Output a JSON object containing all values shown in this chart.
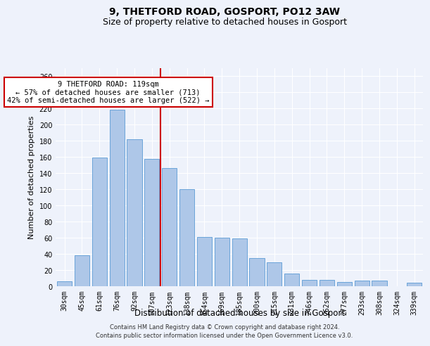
{
  "title": "9, THETFORD ROAD, GOSPORT, PO12 3AW",
  "subtitle": "Size of property relative to detached houses in Gosport",
  "xlabel": "Distribution of detached houses by size in Gosport",
  "ylabel": "Number of detached properties",
  "categories": [
    "30sqm",
    "45sqm",
    "61sqm",
    "76sqm",
    "92sqm",
    "107sqm",
    "123sqm",
    "138sqm",
    "154sqm",
    "169sqm",
    "185sqm",
    "200sqm",
    "215sqm",
    "231sqm",
    "246sqm",
    "262sqm",
    "277sqm",
    "293sqm",
    "308sqm",
    "324sqm",
    "339sqm"
  ],
  "values": [
    6,
    38,
    159,
    219,
    182,
    158,
    146,
    120,
    61,
    60,
    59,
    35,
    30,
    16,
    8,
    8,
    5,
    7,
    7,
    0,
    4
  ],
  "bar_color": "#aec7e8",
  "bar_edge_color": "#5b9bd5",
  "annotation_text": "9 THETFORD ROAD: 119sqm\n← 57% of detached houses are smaller (713)\n42% of semi-detached houses are larger (522) →",
  "annotation_box_color": "#ffffff",
  "annotation_box_edge": "#cc0000",
  "vline_color": "#cc0000",
  "footer1": "Contains HM Land Registry data © Crown copyright and database right 2024.",
  "footer2": "Contains public sector information licensed under the Open Government Licence v3.0.",
  "ylim": [
    0,
    270
  ],
  "yticks": [
    0,
    20,
    40,
    60,
    80,
    100,
    120,
    140,
    160,
    180,
    200,
    220,
    240,
    260
  ],
  "vline_x": 5.5,
  "bg_color": "#eef2fb",
  "grid_color": "#ffffff",
  "title_fontsize": 10,
  "subtitle_fontsize": 9,
  "tick_fontsize": 7,
  "ylabel_fontsize": 8,
  "xlabel_fontsize": 8.5,
  "footer_fontsize": 6,
  "annotation_fontsize": 7.5
}
